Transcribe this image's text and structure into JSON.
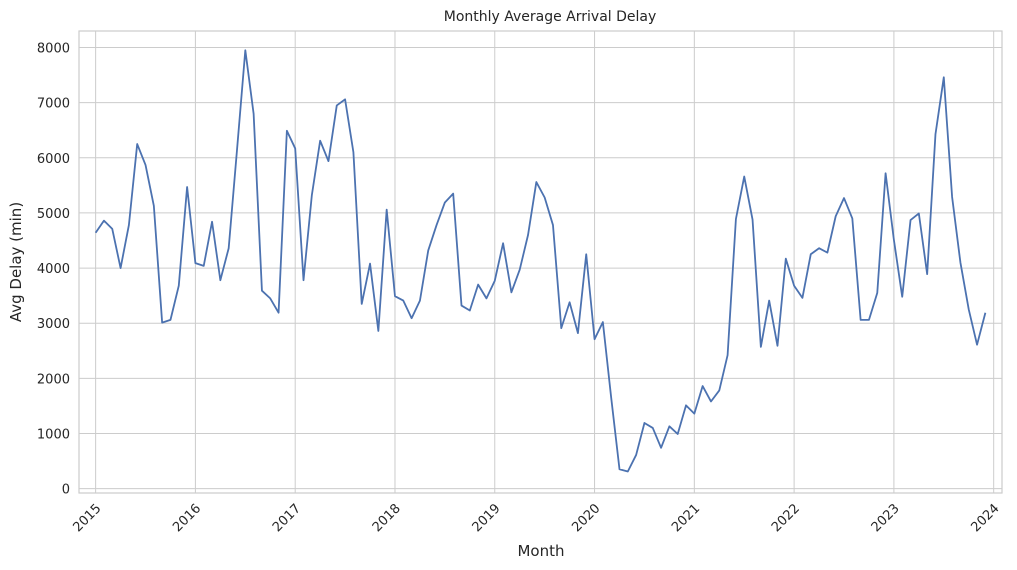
{
  "chart_data": {
    "type": "line",
    "title": "Monthly Average Arrival Delay",
    "xlabel": "Month",
    "ylabel": "Avg Delay (min)",
    "grid": true,
    "x_ticks": [
      "2015",
      "2016",
      "2017",
      "2018",
      "2019",
      "2020",
      "2021",
      "2022",
      "2023",
      "2024"
    ],
    "y_ticks": [
      "0",
      "1000",
      "2000",
      "3000",
      "4000",
      "5000",
      "6000",
      "7000",
      "8000"
    ],
    "ylim": [
      -80,
      8300
    ],
    "xlim": [
      "2014-11",
      "2024-02"
    ],
    "x": [
      "2015-01",
      "2015-02",
      "2015-03",
      "2015-04",
      "2015-05",
      "2015-06",
      "2015-07",
      "2015-08",
      "2015-09",
      "2015-10",
      "2015-11",
      "2015-12",
      "2016-01",
      "2016-02",
      "2016-03",
      "2016-04",
      "2016-05",
      "2016-06",
      "2016-07",
      "2016-08",
      "2016-09",
      "2016-10",
      "2016-11",
      "2016-12",
      "2017-01",
      "2017-02",
      "2017-03",
      "2017-04",
      "2017-05",
      "2017-06",
      "2017-07",
      "2017-08",
      "2017-09",
      "2017-10",
      "2017-11",
      "2017-12",
      "2018-01",
      "2018-02",
      "2018-03",
      "2018-04",
      "2018-05",
      "2018-06",
      "2018-07",
      "2018-08",
      "2018-09",
      "2018-10",
      "2018-11",
      "2018-12",
      "2019-01",
      "2019-02",
      "2019-03",
      "2019-04",
      "2019-05",
      "2019-06",
      "2019-07",
      "2019-08",
      "2019-09",
      "2019-10",
      "2019-11",
      "2019-12",
      "2020-01",
      "2020-02",
      "2020-03",
      "2020-04",
      "2020-05",
      "2020-06",
      "2020-07",
      "2020-08",
      "2020-09",
      "2020-10",
      "2020-11",
      "2020-12",
      "2021-01",
      "2021-02",
      "2021-03",
      "2021-04",
      "2021-05",
      "2021-06",
      "2021-07",
      "2021-08",
      "2021-09",
      "2021-10",
      "2021-11",
      "2021-12",
      "2022-01",
      "2022-02",
      "2022-03",
      "2022-04",
      "2022-05",
      "2022-06",
      "2022-07",
      "2022-08",
      "2022-09",
      "2022-10",
      "2022-11",
      "2022-12",
      "2023-01",
      "2023-02",
      "2023-03",
      "2023-04",
      "2023-05",
      "2023-06",
      "2023-07",
      "2023-08",
      "2023-09",
      "2023-10",
      "2023-11",
      "2023-12"
    ],
    "series": [
      {
        "values": [
          4640,
          4860,
          4710,
          4000,
          4780,
          6250,
          5870,
          5130,
          3010,
          3060,
          3680,
          5470,
          4090,
          4040,
          4840,
          3780,
          4360,
          6140,
          7950,
          6800,
          3590,
          3450,
          3190,
          6490,
          6170,
          3780,
          5320,
          6310,
          5940,
          6950,
          7060,
          6100,
          3350,
          4080,
          2860,
          5060,
          3490,
          3410,
          3090,
          3410,
          4320,
          4780,
          5190,
          5350,
          3320,
          3230,
          3700,
          3450,
          3770,
          4450,
          3560,
          3970,
          4600,
          5560,
          5280,
          4780,
          2910,
          3380,
          2820,
          4250,
          2710,
          3020,
          1650,
          350,
          310,
          610,
          1190,
          1100,
          740,
          1130,
          990,
          1510,
          1360,
          1860,
          1580,
          1780,
          2420,
          4890,
          5660,
          4880,
          2570,
          3410,
          2590,
          4170,
          3680,
          3460,
          4250,
          4360,
          4280,
          4940,
          5270,
          4900,
          3060,
          3060,
          3550,
          5720,
          4510,
          3480,
          4870,
          4990,
          3890,
          6430,
          7460,
          5290,
          4100,
          3250,
          2610,
          3190
        ]
      }
    ],
    "line_color": "#4c72b0"
  }
}
